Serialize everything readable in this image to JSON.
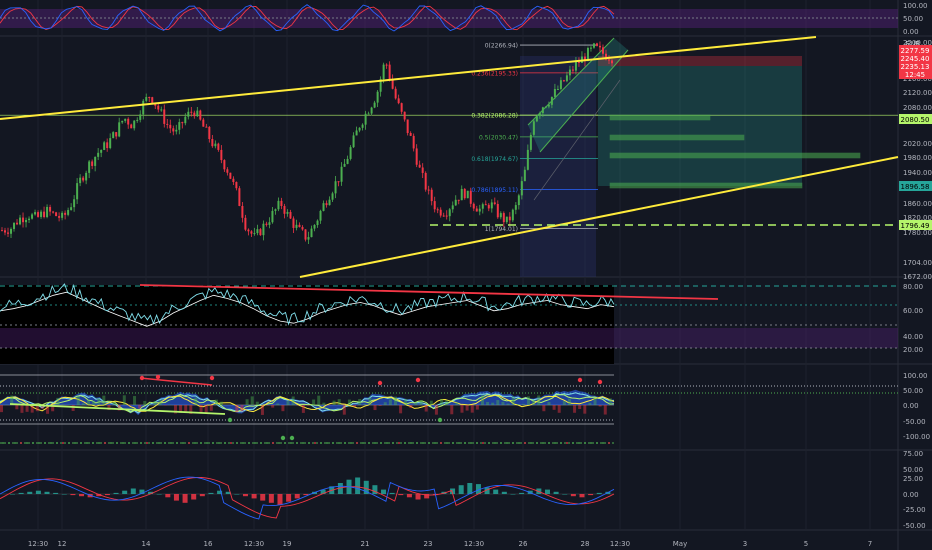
{
  "currency": "EUR",
  "stoch": {
    "axis_ticks": [
      "100.00",
      "50.00",
      "0.00"
    ]
  },
  "price": {
    "axis_ticks": [
      "2200.00",
      "2160.00",
      "2120.00",
      "2080.00",
      "2020.00",
      "1980.00",
      "1940.00",
      "1900.00",
      "1860.00",
      "1820.00",
      "1780.00",
      "1704.00",
      "1672.00"
    ],
    "tags": [
      {
        "text": "2277.59",
        "bg": "#f23645",
        "fg": "#ffffff"
      },
      {
        "text": "2245.40",
        "bg": "#f23645",
        "fg": "#ffffff"
      },
      {
        "text": "2235.13",
        "bg": "#f23645",
        "fg": "#ffffff"
      },
      {
        "text": "12:45",
        "bg": "#f23645",
        "fg": "#ffffff"
      },
      {
        "text": "2080.50",
        "bg": "#b5f56b",
        "fg": "#000000"
      },
      {
        "text": "1896.58",
        "bg": "#26a69a",
        "fg": "#000000"
      },
      {
        "text": "1796.49",
        "bg": "#b5f56b",
        "fg": "#000000"
      }
    ],
    "fib_levels": [
      {
        "label": "0(2266.94)",
        "color": "#b2b5be"
      },
      {
        "label": "0.236(2195.33)",
        "color": "#f23645"
      },
      {
        "label": "0.382(2086.28)",
        "color": "#b5f56b"
      },
      {
        "label": "0.5(2030.47)",
        "color": "#4caf50"
      },
      {
        "label": "0.618(1974.67)",
        "color": "#26a69a"
      },
      {
        "label": "0.786(1895.11)",
        "color": "#2962ff"
      },
      {
        "label": "1(1794.01)",
        "color": "#b2b5be"
      }
    ]
  },
  "rsi": {
    "axis_ticks": [
      "80.00",
      "60.00",
      "40.00",
      "20.00"
    ]
  },
  "wave": {
    "axis_ticks": [
      "100.00",
      "50.00",
      "0.00",
      "-50.00",
      "-100.00"
    ]
  },
  "macd": {
    "axis_ticks": [
      "75.00",
      "50.00",
      "25.00",
      "0.00",
      "-25.00",
      "-50.00"
    ]
  },
  "time_axis": [
    "12:30",
    "12",
    "14",
    "16",
    "12:30",
    "19",
    "21",
    "23",
    "12:30",
    "26",
    "28",
    "12:30",
    "May",
    "3",
    "5",
    "7"
  ],
  "colors": {
    "bg": "#131722",
    "up": "#26a69a",
    "up_candle": "#4caf50",
    "down": "#f23645",
    "trend": "#ffeb3b",
    "grid": "#1e222d"
  },
  "chart_data": [
    {
      "type": "candlestick",
      "title": "",
      "ylabel": "EUR",
      "ylim": [
        1672,
        2280
      ],
      "x": [
        "12:30",
        "12",
        "14",
        "16",
        "12:30",
        "19",
        "21",
        "23",
        "12:30",
        "26",
        "28",
        "12:30"
      ],
      "close_path": [
        1790,
        1795,
        1820,
        1830,
        1820,
        1840,
        1830,
        1820,
        1860,
        1920,
        1960,
        1990,
        2010,
        2040,
        2080,
        2060,
        2110,
        2140,
        2100,
        2060,
        2040,
        2080,
        2100,
        2060,
        2020,
        1980,
        1940,
        1880,
        1800,
        1770,
        1800,
        1830,
        1860,
        1820,
        1790,
        1770,
        1810,
        1860,
        1900,
        1940,
        2000,
        2060,
        2100,
        2140,
        2230,
        2140,
        2080,
        2020,
        1940,
        1880,
        1840,
        1840,
        1870,
        1890,
        1860,
        1840,
        1860,
        1830,
        1810,
        1850,
        1940,
        2080,
        2110,
        2130,
        2160,
        2190,
        2220,
        2240,
        2260,
        2245,
        2235
      ],
      "fib_retracement": [
        {
          "level": 0,
          "price": 2266.94
        },
        {
          "level": 0.236,
          "price": 2195.33
        },
        {
          "level": 0.382,
          "price": 2086.28
        },
        {
          "level": 0.5,
          "price": 2030.47
        },
        {
          "level": 0.618,
          "price": 1974.67
        },
        {
          "level": 0.786,
          "price": 1895.11
        },
        {
          "level": 1,
          "price": 1794.01
        }
      ],
      "horizontal_line": 1796.49
    },
    {
      "type": "line",
      "title": "",
      "ylim": [
        20,
        90
      ],
      "series": [
        {
          "values": [
            60,
            62,
            65,
            70,
            75,
            78,
            72,
            66,
            60,
            55,
            50,
            45,
            50,
            58,
            64,
            70,
            75,
            72,
            68,
            62,
            55,
            50,
            48,
            52,
            58,
            62,
            66,
            68,
            65,
            60,
            56,
            60,
            64,
            66,
            68,
            70,
            65,
            60,
            62,
            66,
            68,
            70,
            66,
            64,
            62,
            66,
            64
          ]
        }
      ]
    },
    {
      "type": "line",
      "title": "",
      "ylim": [
        -100,
        100
      ],
      "series": [
        {
          "values": [
            20,
            30,
            10,
            -10,
            20,
            30,
            40,
            25,
            10,
            -20,
            -30,
            10,
            30,
            40,
            35,
            20,
            -10,
            -30,
            -20,
            10,
            30,
            20,
            10,
            -20,
            -25,
            0,
            20,
            40,
            30,
            20,
            10,
            -10,
            10,
            30,
            40,
            45,
            40,
            30,
            20,
            30,
            45,
            50,
            40,
            30,
            20
          ]
        }
      ]
    },
    {
      "type": "bar",
      "title": "",
      "ylim": [
        -60,
        80
      ],
      "series": [
        {
          "values": [
            0,
            2,
            4,
            6,
            4,
            2,
            0,
            -2,
            -4,
            -6,
            -4,
            -2,
            2,
            6,
            10,
            8,
            4,
            0,
            -6,
            -12,
            -16,
            -10,
            -4,
            2,
            6,
            4,
            0,
            -4,
            -8,
            -12,
            -16,
            -20,
            -14,
            -8,
            -2,
            4,
            8,
            14,
            20,
            26,
            30,
            24,
            16,
            8,
            2,
            -2,
            -6,
            -10,
            -8,
            -2,
            4,
            10,
            16,
            20,
            18,
            12,
            8,
            4,
            0,
            2,
            6,
            10,
            8,
            4,
            0,
            -4,
            -6,
            -2,
            2,
            4
          ]
        }
      ]
    }
  ]
}
